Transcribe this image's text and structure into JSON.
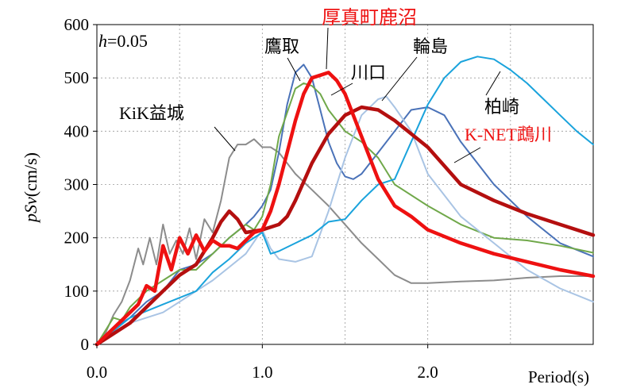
{
  "chart_data": {
    "type": "line",
    "title": "",
    "xlabel": "Period(s)",
    "ylabel": "pSv(cm/s)",
    "ylabel_parts": {
      "italic": "pSv",
      "rest": "(cm/s)"
    },
    "xlim": [
      0,
      3
    ],
    "ylim": [
      0,
      600
    ],
    "xticks": [
      0,
      1,
      2
    ],
    "xtick_labels": [
      "0.0",
      "1.0",
      "2.0"
    ],
    "yticks": [
      0,
      100,
      200,
      300,
      400,
      500,
      600
    ],
    "ytick_labels": [
      "0",
      "100",
      "200",
      "300",
      "400",
      "500",
      "600"
    ],
    "grid": {
      "vertical": [
        0.5,
        1.0,
        1.5,
        2.0,
        2.5
      ],
      "horizontal": [
        100,
        200,
        300,
        400,
        500
      ],
      "style": "dotted"
    },
    "damping_label": {
      "italic": "h",
      "rest": "=0.05"
    },
    "series": [
      {
        "name": "KiK益城",
        "color": "#8c8c8c",
        "width": 2,
        "x": [
          0.0,
          0.05,
          0.1,
          0.15,
          0.2,
          0.25,
          0.28,
          0.32,
          0.36,
          0.4,
          0.44,
          0.48,
          0.52,
          0.56,
          0.6,
          0.65,
          0.7,
          0.75,
          0.8,
          0.85,
          0.9,
          0.95,
          1.0,
          1.05,
          1.1,
          1.2,
          1.3,
          1.4,
          1.5,
          1.6,
          1.7,
          1.8,
          1.9,
          2.0,
          2.2,
          2.4,
          2.6,
          2.8,
          3.0
        ],
        "y": [
          0,
          20,
          55,
          80,
          120,
          180,
          150,
          200,
          150,
          225,
          170,
          195,
          170,
          218,
          160,
          235,
          210,
          270,
          350,
          375,
          375,
          385,
          370,
          370,
          360,
          320,
          290,
          260,
          225,
          190,
          160,
          130,
          115,
          115,
          118,
          120,
          125,
          128,
          128
        ]
      },
      {
        "name": "鷹取",
        "color": "#4a72b8",
        "width": 2,
        "x": [
          0.0,
          0.1,
          0.2,
          0.3,
          0.4,
          0.5,
          0.6,
          0.7,
          0.8,
          0.9,
          0.95,
          1.0,
          1.05,
          1.1,
          1.15,
          1.2,
          1.25,
          1.3,
          1.35,
          1.4,
          1.45,
          1.5,
          1.55,
          1.6,
          1.7,
          1.8,
          1.9,
          2.0,
          2.1,
          2.2,
          2.4,
          2.6,
          2.8,
          3.0
        ],
        "y": [
          0,
          30,
          50,
          80,
          100,
          140,
          150,
          170,
          200,
          225,
          240,
          260,
          290,
          360,
          450,
          510,
          525,
          500,
          440,
          380,
          340,
          315,
          310,
          320,
          360,
          400,
          440,
          445,
          430,
          380,
          300,
          240,
          190,
          165
        ]
      },
      {
        "name": "川口",
        "color": "#70a84a",
        "width": 2,
        "x": [
          0.0,
          0.1,
          0.15,
          0.2,
          0.3,
          0.4,
          0.5,
          0.6,
          0.7,
          0.8,
          0.9,
          0.95,
          1.0,
          1.05,
          1.1,
          1.2,
          1.25,
          1.3,
          1.35,
          1.4,
          1.5,
          1.6,
          1.7,
          1.8,
          2.0,
          2.2,
          2.4,
          2.6,
          2.8,
          3.0
        ],
        "y": [
          0,
          50,
          45,
          70,
          100,
          120,
          140,
          140,
          170,
          200,
          225,
          215,
          240,
          300,
          390,
          480,
          490,
          485,
          470,
          440,
          400,
          380,
          350,
          300,
          260,
          225,
          200,
          195,
          185,
          172
        ]
      },
      {
        "name": "輪島",
        "color": "#a9c4e4",
        "width": 2,
        "x": [
          0.0,
          0.2,
          0.4,
          0.5,
          0.6,
          0.7,
          0.8,
          0.9,
          1.0,
          1.05,
          1.1,
          1.2,
          1.3,
          1.4,
          1.5,
          1.6,
          1.7,
          1.75,
          1.8,
          1.9,
          2.0,
          2.2,
          2.4,
          2.6,
          2.8,
          3.0
        ],
        "y": [
          0,
          40,
          60,
          80,
          100,
          120,
          145,
          170,
          215,
          180,
          160,
          155,
          165,
          250,
          350,
          430,
          460,
          465,
          445,
          400,
          320,
          240,
          190,
          140,
          105,
          80
        ]
      },
      {
        "name": "柏崎",
        "color": "#1aa3dc",
        "width": 2,
        "x": [
          0.0,
          0.2,
          0.4,
          0.6,
          0.7,
          0.8,
          0.9,
          1.0,
          1.05,
          1.1,
          1.2,
          1.3,
          1.4,
          1.5,
          1.6,
          1.7,
          1.8,
          1.9,
          2.0,
          2.1,
          2.2,
          2.3,
          2.4,
          2.5,
          2.6,
          2.7,
          2.8,
          2.9,
          3.0
        ],
        "y": [
          0,
          50,
          75,
          100,
          135,
          160,
          190,
          210,
          170,
          175,
          190,
          205,
          230,
          235,
          270,
          300,
          310,
          380,
          450,
          500,
          530,
          540,
          535,
          515,
          490,
          460,
          430,
          400,
          375
        ]
      },
      {
        "name": "K-NET鵡川",
        "color": "#b40f0f",
        "width": 4.5,
        "x": [
          0.0,
          0.1,
          0.2,
          0.3,
          0.4,
          0.5,
          0.6,
          0.7,
          0.75,
          0.8,
          0.85,
          0.9,
          1.0,
          1.1,
          1.15,
          1.2,
          1.3,
          1.4,
          1.5,
          1.6,
          1.7,
          1.8,
          2.0,
          2.2,
          2.4,
          2.6,
          2.8,
          3.0
        ],
        "y": [
          0,
          20,
          40,
          70,
          100,
          130,
          150,
          200,
          230,
          250,
          235,
          210,
          215,
          225,
          240,
          270,
          340,
          395,
          430,
          445,
          440,
          420,
          370,
          300,
          270,
          245,
          225,
          205
        ]
      },
      {
        "name": "厚真町鹿沼",
        "color": "#ee1111",
        "width": 4.5,
        "x": [
          0.0,
          0.1,
          0.15,
          0.2,
          0.25,
          0.3,
          0.35,
          0.4,
          0.45,
          0.5,
          0.55,
          0.6,
          0.65,
          0.7,
          0.75,
          0.8,
          0.85,
          0.9,
          0.95,
          1.0,
          1.05,
          1.1,
          1.15,
          1.2,
          1.25,
          1.3,
          1.35,
          1.4,
          1.45,
          1.5,
          1.55,
          1.6,
          1.65,
          1.7,
          1.8,
          1.9,
          2.0,
          2.2,
          2.4,
          2.6,
          2.8,
          3.0
        ],
        "y": [
          0,
          30,
          45,
          60,
          75,
          110,
          100,
          185,
          140,
          200,
          170,
          205,
          175,
          195,
          185,
          185,
          180,
          195,
          210,
          215,
          250,
          300,
          360,
          420,
          470,
          500,
          505,
          510,
          495,
          470,
          430,
          390,
          350,
          310,
          260,
          240,
          215,
          190,
          170,
          155,
          140,
          128
        ]
      }
    ],
    "annotations": [
      {
        "text": "KiK益城",
        "series": "KiK益城"
      },
      {
        "text": "鷹取",
        "series": "鷹取"
      },
      {
        "text": "厚真町鹿沼",
        "series": "厚真町鹿沼"
      },
      {
        "text": "川口",
        "series": "川口"
      },
      {
        "text": "輪島",
        "series": "輪島"
      },
      {
        "text": "柏崎",
        "series": "柏崎"
      },
      {
        "text": "K-NET鵡川",
        "series": "K-NET鵡川"
      }
    ]
  }
}
